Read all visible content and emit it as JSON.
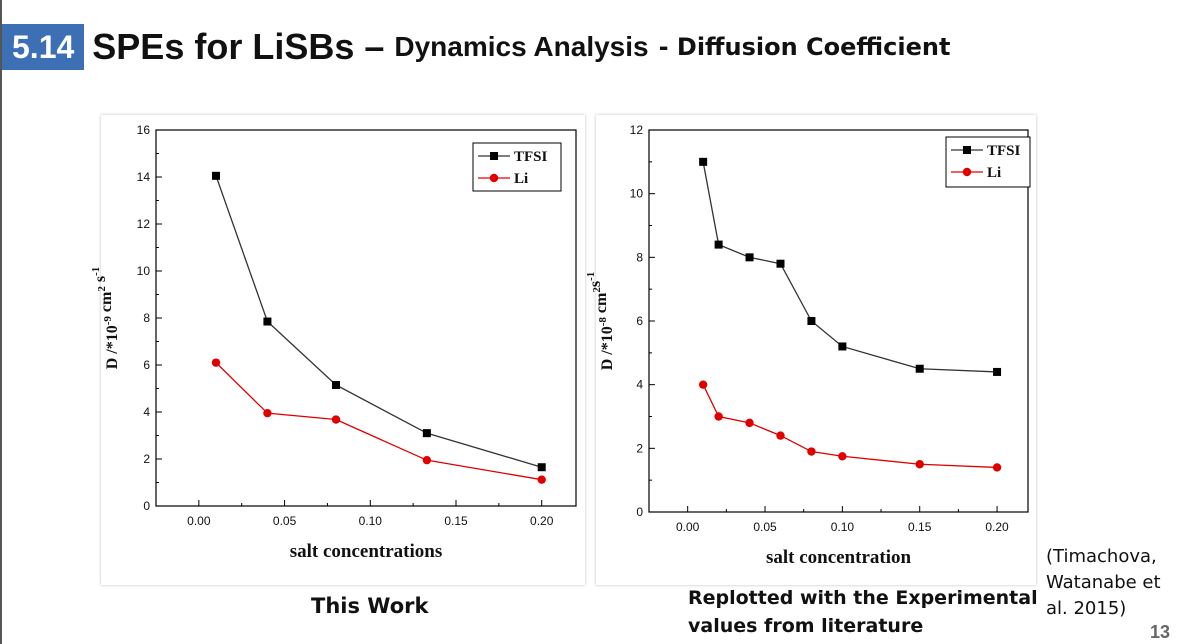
{
  "slide": {
    "section_number": "5.14",
    "title_main": "SPEs for LiSBs –",
    "title_mid": "Dynamics Analysis",
    "title_sub": "- Diffusion Coefficient",
    "caption_left": "This Work",
    "caption_right_line1": "Replotted with the Experimental",
    "caption_right_line2": "values from literature",
    "citation_line1": "(Timachova,",
    "citation_line2": "Watanabe et",
    "citation_line3": "al. 2015)",
    "page_number": "13"
  },
  "colors": {
    "accent": "#3d6fb5",
    "tfsi": "#000000",
    "li": "#e00000"
  },
  "chart_data": [
    {
      "type": "line",
      "xlabel": "salt concentrations",
      "ylabel": "D /*10^-9 cm² s^-1",
      "ylabel_parts": {
        "base": "D /*10",
        "exp1": "-9",
        "mid": " cm",
        "exp2": "2",
        "mid2": " s",
        "exp3": "-1"
      },
      "xlim": [
        -0.025,
        0.22
      ],
      "ylim": [
        0,
        16
      ],
      "xticks": [
        "0.00",
        "0.05",
        "0.10",
        "0.15",
        "0.20"
      ],
      "xtick_values": [
        0,
        0.05,
        0.1,
        0.15,
        0.2
      ],
      "yticks": [
        "0",
        "2",
        "4",
        "6",
        "8",
        "10",
        "12",
        "14",
        "16"
      ],
      "ytick_values": [
        0,
        2,
        4,
        6,
        8,
        10,
        12,
        14,
        16
      ],
      "legend": "top-right",
      "series": [
        {
          "name": "TFSI",
          "marker": "square",
          "color": "#000000",
          "x": [
            0.01,
            0.04,
            0.08,
            0.133,
            0.2
          ],
          "y": [
            14.05,
            7.85,
            5.15,
            3.1,
            1.65
          ]
        },
        {
          "name": "Li",
          "marker": "circle",
          "color": "#e00000",
          "x": [
            0.01,
            0.04,
            0.08,
            0.133,
            0.2
          ],
          "y": [
            6.1,
            3.95,
            3.68,
            1.95,
            1.12
          ]
        }
      ]
    },
    {
      "type": "line",
      "xlabel": "salt concentration",
      "ylabel": "D /*10^-8 cm²s^-1",
      "ylabel_parts": {
        "base": "D /*10",
        "exp1": "-8",
        "mid": " cm",
        "exp2": "2",
        "mid2": "s",
        "exp3": "-1"
      },
      "xlim": [
        -0.025,
        0.22
      ],
      "ylim": [
        0,
        12
      ],
      "xticks": [
        "0.00",
        "0.05",
        "0.10",
        "0.15",
        "0.20"
      ],
      "xtick_values": [
        0,
        0.05,
        0.1,
        0.15,
        0.2
      ],
      "yticks": [
        "0",
        "2",
        "4",
        "6",
        "8",
        "10",
        "12"
      ],
      "ytick_values": [
        0,
        2,
        4,
        6,
        8,
        10,
        12
      ],
      "legend": "top-right",
      "series": [
        {
          "name": "TFSI",
          "marker": "square",
          "color": "#000000",
          "x": [
            0.01,
            0.02,
            0.04,
            0.06,
            0.08,
            0.1,
            0.15,
            0.2
          ],
          "y": [
            11.0,
            8.4,
            8.0,
            7.8,
            6.0,
            5.2,
            4.5,
            4.4
          ]
        },
        {
          "name": "Li",
          "marker": "circle",
          "color": "#e00000",
          "x": [
            0.01,
            0.02,
            0.04,
            0.06,
            0.08,
            0.1,
            0.15,
            0.2
          ],
          "y": [
            4.0,
            3.0,
            2.8,
            2.4,
            1.9,
            1.75,
            1.5,
            1.4
          ]
        }
      ]
    }
  ]
}
